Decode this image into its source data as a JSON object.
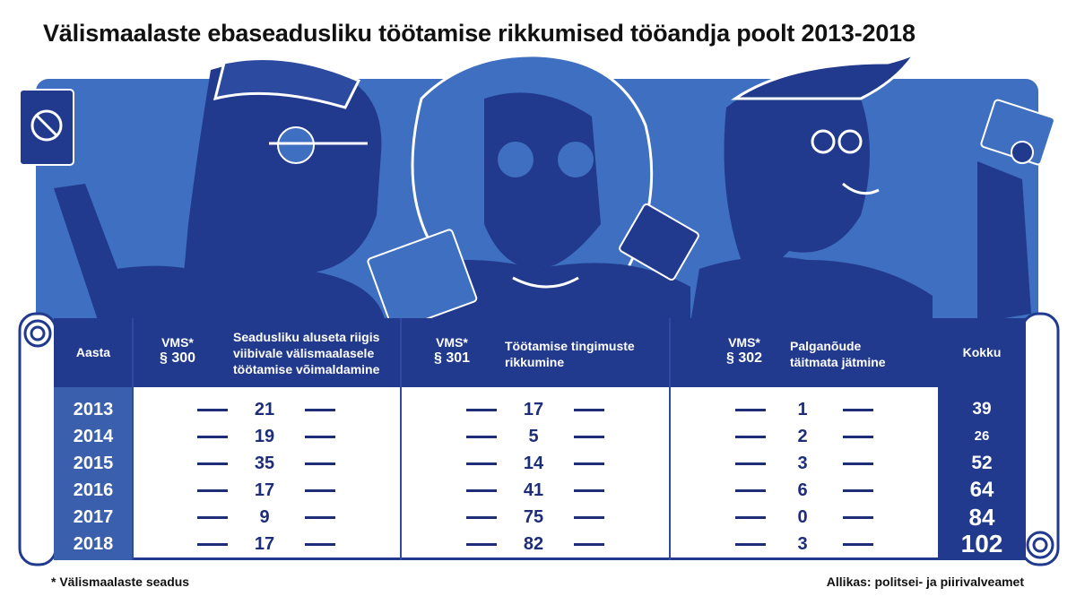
{
  "title": "Välismaalaste ebaseadusliku töötamise rikkumised tööandja poolt 2013-2018",
  "colors": {
    "dark_blue": "#213a8e",
    "mid_blue": "#3a5fad",
    "light_blue": "#3f6fc0",
    "text": "#1e2d78"
  },
  "table": {
    "headers": {
      "year": "Aasta",
      "col1_code_a": "VMS*",
      "col1_code_b": "§ 300",
      "col1_desc_1": "Seadusliku aluseta riigis",
      "col1_desc_2": "viibivale välismaalasele",
      "col1_desc_3": "töötamise võimaldamine",
      "col2_code_a": "VMS*",
      "col2_code_b": "§ 301",
      "col2_desc_1": "Töötamise tingimuste",
      "col2_desc_2": "rikkumine",
      "col3_code_a": "VMS*",
      "col3_code_b": "§ 302",
      "col3_desc_1": "Palganõude",
      "col3_desc_2": "täitmata jätmine",
      "total": "Kokku"
    },
    "rows": [
      {
        "year": "2013",
        "s300": "21",
        "s301": "17",
        "s302": "1",
        "total": "39"
      },
      {
        "year": "2014",
        "s300": "19",
        "s301": "5",
        "s302": "2",
        "total": "26"
      },
      {
        "year": "2015",
        "s300": "35",
        "s301": "14",
        "s302": "3",
        "total": "52"
      },
      {
        "year": "2016",
        "s300": "17",
        "s301": "41",
        "s302": "6",
        "total": "64"
      },
      {
        "year": "2017",
        "s300": "9",
        "s301": "75",
        "s302": "0",
        "total": "84"
      },
      {
        "year": "2018",
        "s300": "17",
        "s301": "82",
        "s302": "3",
        "total": "102"
      }
    ]
  },
  "footnote": "* Välismaalaste seadus",
  "source": "Allikas: politsei- ja piirivalveamet"
}
